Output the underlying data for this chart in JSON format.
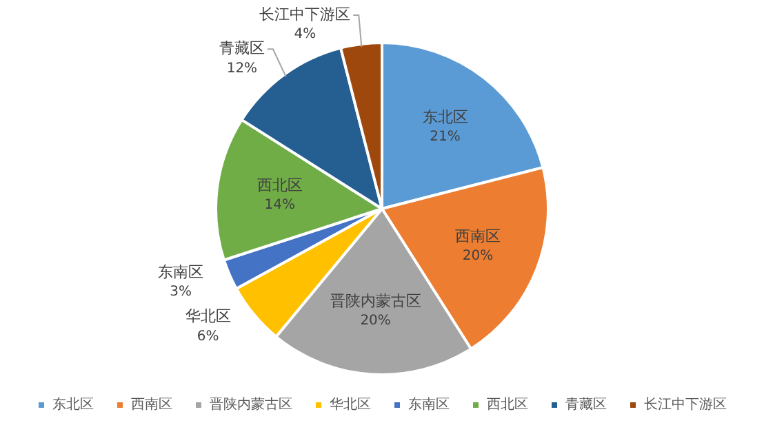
{
  "chart_data": {
    "type": "pie",
    "categories": [
      "东北区",
      "西南区",
      "晋陕内蒙古区",
      "华北区",
      "东南区",
      "西北区",
      "青藏区",
      "长江中下游区"
    ],
    "values": [
      21,
      20,
      20,
      6,
      3,
      14,
      12,
      4
    ],
    "value_labels": [
      "21%",
      "20%",
      "20%",
      "6%",
      "3%",
      "14%",
      "12%",
      "4%"
    ],
    "colors": [
      "#5b9bd5",
      "#ed7d31",
      "#a5a5a5",
      "#ffc000",
      "#4472c4",
      "#70ad47",
      "#255e91",
      "#9e480e"
    ],
    "legend": "bottom"
  }
}
